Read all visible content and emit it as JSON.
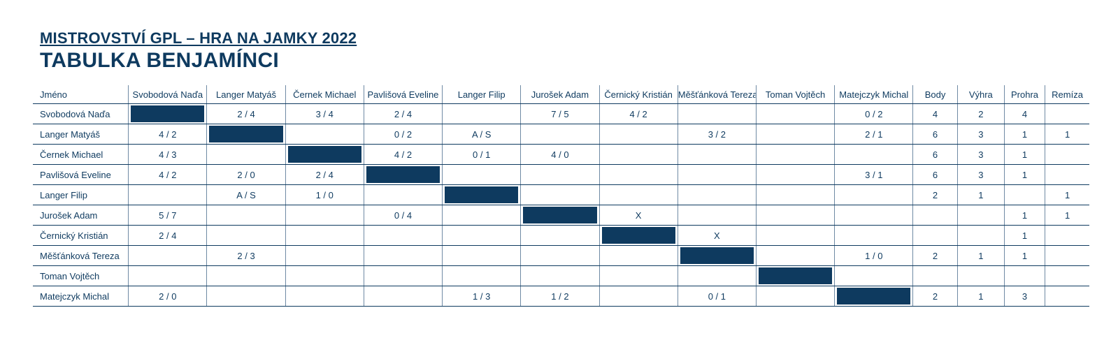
{
  "heading": {
    "line1": "MISTROVSTVÍ GPL – HRA NA JAMKY 2022",
    "line2": "TABULKA BENJAMÍNCI"
  },
  "table": {
    "name_header": "Jméno",
    "players": [
      "Svobodová Naďa",
      "Langer Matyáš",
      "Černek Michael",
      "Pavlišová Eveline",
      "Langer Filip",
      "Jurošek Adam",
      "Černický Kristián",
      "Měšťánková Tereza",
      "Toman Vojtěch",
      "Matejczyk Michal"
    ],
    "stat_headers": [
      "Body",
      "Výhra",
      "Prohra",
      "Remíza"
    ],
    "rows": [
      {
        "name": "Svobodová Naďa",
        "results": [
          "",
          "2 / 4",
          "3 / 4",
          "2 / 4",
          "",
          "7 / 5",
          "4 / 2",
          "",
          "",
          "0 / 2"
        ],
        "stats": [
          "4",
          "2",
          "4",
          ""
        ]
      },
      {
        "name": "Langer Matyáš",
        "results": [
          "4 / 2",
          "",
          "",
          "0 / 2",
          "A / S",
          "",
          "",
          "3 / 2",
          "",
          "2 / 1"
        ],
        "stats": [
          "6",
          "3",
          "1",
          "1"
        ]
      },
      {
        "name": "Černek Michael",
        "results": [
          "4 / 3",
          "",
          "",
          "4 / 2",
          "0 / 1",
          "4 / 0",
          "",
          "",
          "",
          ""
        ],
        "stats": [
          "6",
          "3",
          "1",
          ""
        ]
      },
      {
        "name": "Pavlišová Eveline",
        "results": [
          "4 / 2",
          "2 / 0",
          "2 / 4",
          "",
          "",
          "",
          "",
          "",
          "",
          "3 / 1"
        ],
        "stats": [
          "6",
          "3",
          "1",
          ""
        ]
      },
      {
        "name": "Langer Filip",
        "results": [
          "",
          "A / S",
          "1 / 0",
          "",
          "",
          "",
          "",
          "",
          "",
          ""
        ],
        "stats": [
          "2",
          "1",
          "",
          "1"
        ]
      },
      {
        "name": "Jurošek Adam",
        "results": [
          "5 / 7",
          "",
          "",
          "0 / 4",
          "",
          "",
          "X",
          "",
          "",
          ""
        ],
        "stats": [
          "",
          "",
          "1",
          "1"
        ]
      },
      {
        "name": "Černický Kristián",
        "results": [
          "2 / 4",
          "",
          "",
          "",
          "",
          "",
          "",
          "X",
          "",
          ""
        ],
        "stats": [
          "",
          "",
          "1",
          ""
        ]
      },
      {
        "name": "Měšťánková Tereza",
        "results": [
          "",
          "2 / 3",
          "",
          "",
          "",
          "",
          "",
          "",
          "",
          "1 / 0"
        ],
        "stats": [
          "2",
          "1",
          "1",
          ""
        ]
      },
      {
        "name": "Toman Vojtěch",
        "results": [
          "",
          "",
          "",
          "",
          "",
          "",
          "",
          "",
          "",
          ""
        ],
        "stats": [
          "",
          "",
          "",
          ""
        ]
      },
      {
        "name": "Matejczyk Michal",
        "results": [
          "2 / 0",
          "",
          "",
          "",
          "1 / 3",
          "1 / 2",
          "",
          "0 / 1",
          "",
          ""
        ],
        "stats": [
          "2",
          "1",
          "3",
          ""
        ]
      }
    ]
  },
  "colors": {
    "primary": "#0e3a5f",
    "grid_line": "#6f8aa4",
    "background": "#ffffff"
  }
}
